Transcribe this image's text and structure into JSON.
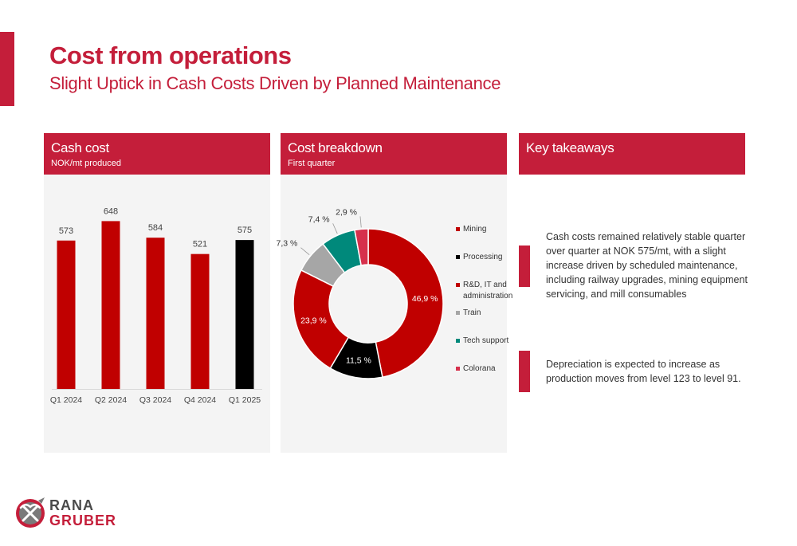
{
  "header": {
    "title": "Cost from operations",
    "subtitle": "Slight Uptick in Cash Costs Driven by Planned Maintenance"
  },
  "colors": {
    "accent": "#c41e3a",
    "bar_default": "#c00000",
    "bar_highlight": "#000000",
    "mining": "#c00000",
    "processing": "#000000",
    "rnd": "#c00000",
    "train": "#a6a6a6",
    "tech_support": "#00897b",
    "colorana": "#d6304c"
  },
  "cash_cost_panel": {
    "title": "Cash cost",
    "subtitle": "NOK/mt produced"
  },
  "breakdown_panel": {
    "title": "Cost breakdown",
    "subtitle": "First quarter"
  },
  "takeaways_panel": {
    "title": "Key takeaways",
    "items": [
      "Cash costs remained relatively stable quarter over quarter at NOK 575/mt, with a slight increase driven by scheduled maintenance, including railway upgrades, mining equipment servicing, and mill consumables",
      "Depreciation is expected to increase as production moves from level 123 to level 91."
    ]
  },
  "logo": {
    "line1": "RANA",
    "line2": "GRUBER"
  },
  "chart_data": [
    {
      "type": "bar",
      "title": "Cash cost",
      "subtitle": "NOK/mt produced",
      "categories": [
        "Q1 2024",
        "Q2 2024",
        "Q3 2024",
        "Q4 2024",
        "Q1 2025"
      ],
      "values": [
        573,
        648,
        584,
        521,
        575
      ],
      "value_labels": [
        "573",
        "648",
        "584",
        "521",
        "575"
      ],
      "highlight_index": 4,
      "ylim": [
        0,
        800
      ],
      "grid": false,
      "legend": "none"
    },
    {
      "type": "pie",
      "style": "donut",
      "title": "Cost breakdown",
      "subtitle": "First quarter",
      "legend": "right",
      "slices": [
        {
          "name": "Mining",
          "value": 46.9,
          "label": "46,9 %",
          "color_key": "mining"
        },
        {
          "name": "Processing",
          "value": 11.5,
          "label": "11,5 %",
          "color_key": "processing"
        },
        {
          "name": "R&D, IT and administration",
          "value": 23.9,
          "label": "23,9 %",
          "color_key": "rnd"
        },
        {
          "name": "Train",
          "value": 7.3,
          "label": "7,3 %",
          "color_key": "train"
        },
        {
          "name": "Tech support",
          "value": 7.4,
          "label": "7,4 %",
          "color_key": "tech_support"
        },
        {
          "name": "Colorana",
          "value": 2.9,
          "label": "2,9 %",
          "color_key": "colorana"
        }
      ],
      "legend_lines": [
        [
          "Mining"
        ],
        [
          "Processing"
        ],
        [
          "R&D, IT and",
          "administration"
        ],
        [
          "Train"
        ],
        [
          "Tech support"
        ],
        [
          "Colorana"
        ]
      ]
    }
  ]
}
